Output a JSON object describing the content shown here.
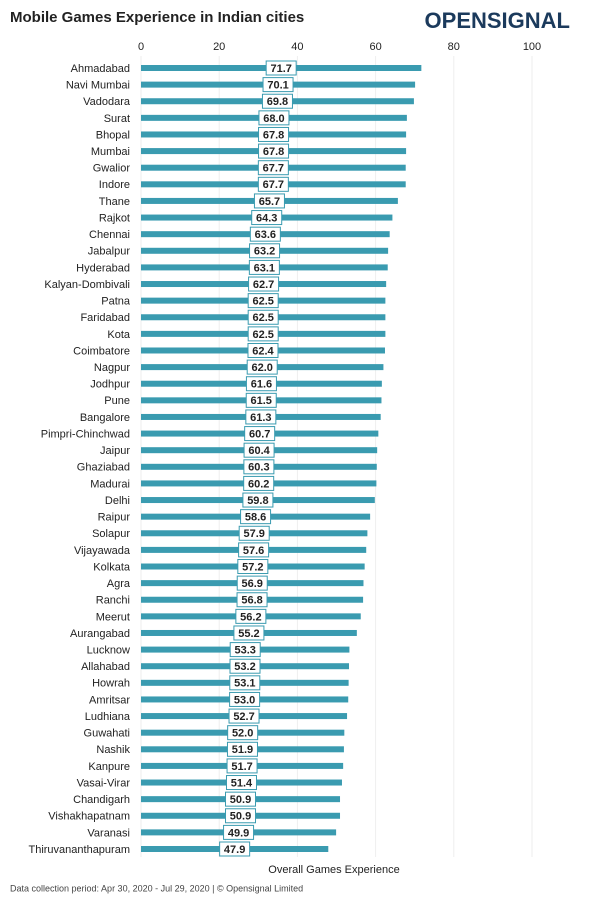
{
  "chart_data": {
    "type": "barh",
    "title": "Mobile Games Experience in Indian cities",
    "brand": "OPENSIGNAL",
    "xlabel": "Overall Games Experience",
    "footnote": "Data collection period: Apr 30, 2020 - Jul 29, 2020 | © Opensignal Limited",
    "categories": [
      "Ahmadabad",
      "Navi Mumbai",
      "Vadodara",
      "Surat",
      "Bhopal",
      "Mumbai",
      "Gwalior",
      "Indore",
      "Thane",
      "Rajkot",
      "Chennai",
      "Jabalpur",
      "Hyderabad",
      "Kalyan-Dombivali",
      "Patna",
      "Faridabad",
      "Kota",
      "Coimbatore",
      "Nagpur",
      "Jodhpur",
      "Pune",
      "Bangalore",
      "Pimpri-Chinchwad",
      "Jaipur",
      "Ghaziabad",
      "Madurai",
      "Delhi",
      "Raipur",
      "Solapur",
      "Vijayawada",
      "Kolkata",
      "Agra",
      "Ranchi",
      "Meerut",
      "Aurangabad",
      "Lucknow",
      "Allahabad",
      "Howrah",
      "Amritsar",
      "Ludhiana",
      "Guwahati",
      "Nashik",
      "Kanpure",
      "Vasai-Virar",
      "Chandigarh",
      "Vishakhapatnam",
      "Varanasi",
      "Thiruvananthapuram"
    ],
    "values": [
      71.7,
      70.1,
      69.8,
      68.0,
      67.8,
      67.8,
      67.7,
      67.7,
      65.7,
      64.3,
      63.6,
      63.2,
      63.1,
      62.7,
      62.5,
      62.5,
      62.5,
      62.4,
      62.0,
      61.6,
      61.5,
      61.3,
      60.7,
      60.4,
      60.3,
      60.2,
      59.8,
      58.6,
      57.9,
      57.6,
      57.2,
      56.9,
      56.8,
      56.2,
      55.2,
      53.3,
      53.2,
      53.1,
      53.0,
      52.7,
      52.0,
      51.9,
      51.7,
      51.4,
      50.9,
      50.9,
      49.9,
      47.9
    ],
    "value_labels": [
      "71.7",
      "70.1",
      "69.8",
      "68.0",
      "67.8",
      "67.8",
      "67.7",
      "67.7",
      "65.7",
      "64.3",
      "63.6",
      "63.2",
      "63.1",
      "62.7",
      "62.5",
      "62.5",
      "62.5",
      "62.4",
      "62.0",
      "61.6",
      "61.5",
      "61.3",
      "60.7",
      "60.4",
      "60.3",
      "60.2",
      "59.8",
      "58.6",
      "57.9",
      "57.6",
      "57.2",
      "56.9",
      "56.8",
      "56.2",
      "55.2",
      "53.3",
      "53.2",
      "53.1",
      "53.0",
      "52.7",
      "52.0",
      "51.9",
      "51.7",
      "51.4",
      "50.9",
      "50.9",
      "49.9",
      "47.9"
    ],
    "color": "#3a9bb0",
    "xlim": [
      0,
      100
    ],
    "xticks": [
      0,
      20,
      40,
      60,
      80,
      100
    ],
    "grid": true
  }
}
